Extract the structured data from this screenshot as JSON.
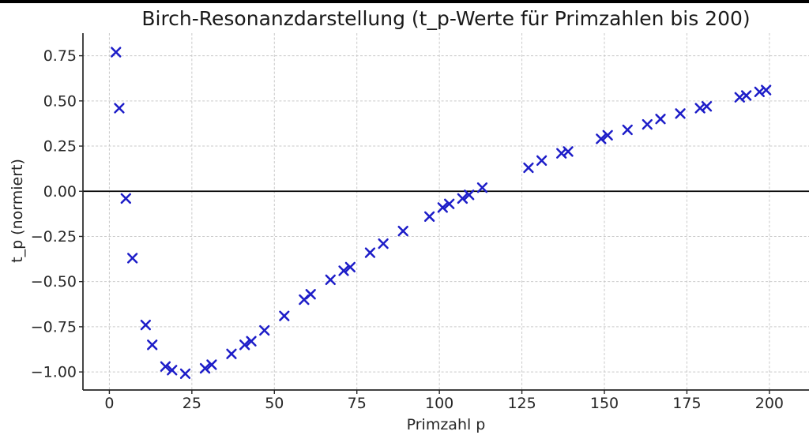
{
  "window": {
    "background": "#ffffff",
    "top_edge_bar_color": "#000000"
  },
  "chart_data": {
    "type": "scatter",
    "title": "Birch-Resonanzdarstellung (t_p-Werte für Primzahlen bis 200)",
    "xlabel": "Primzahl p",
    "ylabel": "t_p (normiert)",
    "marker": "x",
    "marker_color": "#1d1dc8",
    "grid": true,
    "legend": false,
    "zero_line": true,
    "xlim": [
      -8,
      212
    ],
    "ylim": [
      -1.1,
      0.875
    ],
    "xticks": [
      0,
      25,
      50,
      75,
      100,
      125,
      150,
      175,
      200
    ],
    "xtick_labels": [
      "0",
      "25",
      "50",
      "75",
      "100",
      "125",
      "150",
      "175",
      "200"
    ],
    "yticks": [
      0.75,
      0.5,
      0.25,
      0.0,
      -0.25,
      -0.5,
      -0.75,
      -1.0
    ],
    "ytick_labels": [
      "0.75",
      "0.50",
      "0.25",
      "0.00",
      "−0.25",
      "−0.50",
      "−0.75",
      "−1.00"
    ],
    "series": [
      {
        "name": "t_p",
        "x": [
          2,
          3,
          5,
          7,
          11,
          13,
          17,
          19,
          23,
          29,
          31,
          37,
          41,
          43,
          47,
          53,
          59,
          61,
          67,
          71,
          73,
          79,
          83,
          89,
          97,
          101,
          103,
          107,
          109,
          113,
          127,
          131,
          137,
          139,
          149,
          151,
          157,
          163,
          167,
          173,
          179,
          181,
          191,
          193,
          197,
          199
        ],
        "y": [
          0.77,
          0.46,
          -0.04,
          -0.37,
          -0.74,
          -0.85,
          -0.97,
          -0.99,
          -1.01,
          -0.98,
          -0.96,
          -0.9,
          -0.85,
          -0.83,
          -0.77,
          -0.69,
          -0.6,
          -0.57,
          -0.49,
          -0.44,
          -0.42,
          -0.34,
          -0.29,
          -0.22,
          -0.14,
          -0.09,
          -0.07,
          -0.04,
          -0.02,
          0.02,
          0.13,
          0.17,
          0.21,
          0.22,
          0.29,
          0.31,
          0.34,
          0.37,
          0.4,
          0.43,
          0.46,
          0.47,
          0.52,
          0.53,
          0.55,
          0.56
        ]
      }
    ],
    "style": {
      "grid_color": "#c9c9c9",
      "spine_color": "#262626",
      "tick_text_color": "#262626",
      "title_color": "#1a1a1a",
      "zero_line_color": "#000000"
    }
  }
}
